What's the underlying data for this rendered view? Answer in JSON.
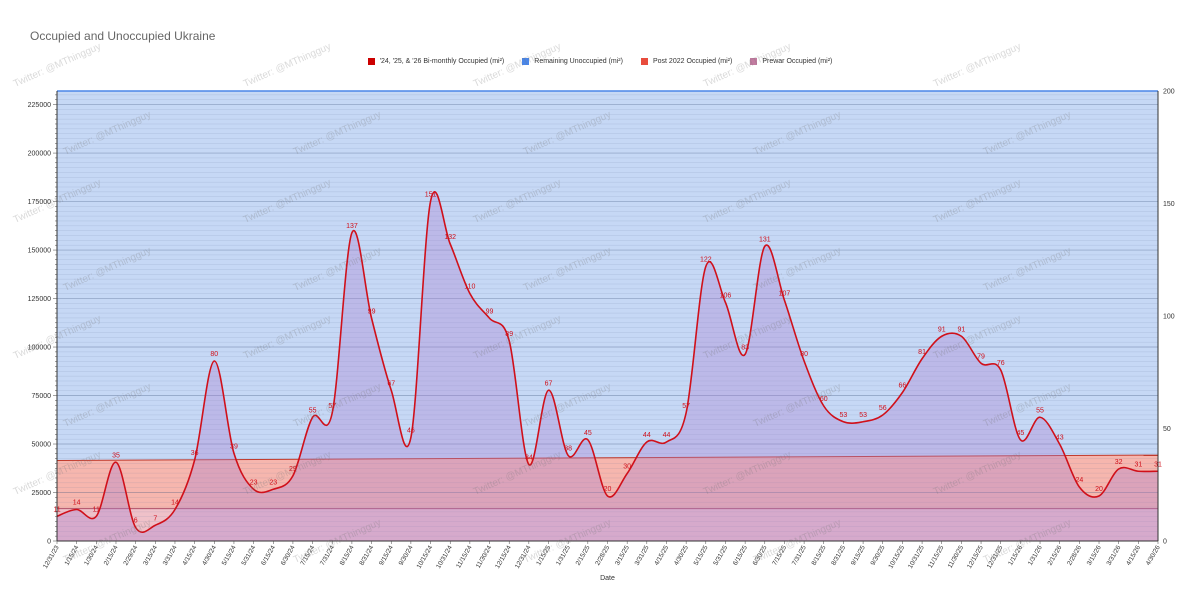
{
  "chart_data": {
    "type": "area",
    "title": "Occupied and Unoccupied Ukraine",
    "xlabel": "Date",
    "ylabel": "",
    "y2label": "",
    "ylim": [
      0,
      232000
    ],
    "y2lim": [
      0,
      200
    ],
    "yticks": [
      0,
      25000,
      50000,
      75000,
      100000,
      125000,
      150000,
      175000,
      200000,
      225000
    ],
    "y2ticks": [
      0,
      50,
      100,
      150,
      200
    ],
    "grid": true,
    "legend_position": "top-center",
    "watermark": "Twitter: @MThingguy",
    "categories": [
      "12/31/23",
      "1/15/24",
      "1/30/24",
      "2/15/24",
      "2/29/24",
      "3/15/24",
      "3/31/24",
      "4/15/24",
      "4/30/24",
      "5/15/24",
      "5/31/24",
      "6/15/24",
      "6/30/24",
      "7/15/24",
      "7/31/24",
      "8/15/24",
      "8/31/24",
      "9/15/24",
      "9/30/24",
      "10/15/24",
      "10/31/24",
      "11/15/24",
      "11/30/24",
      "12/15/24",
      "12/31/24",
      "1/15/25",
      "1/31/25",
      "2/15/25",
      "2/28/25",
      "3/15/25",
      "3/31/25",
      "4/15/25",
      "4/30/25",
      "5/15/25",
      "5/31/25",
      "6/15/25",
      "6/30/25",
      "7/15/25",
      "7/31/25",
      "8/15/25",
      "8/31/25",
      "9/15/25",
      "9/30/25",
      "10/15/25",
      "10/31/25",
      "11/15/25",
      "11/30/25",
      "12/15/25",
      "12/31/25",
      "1/15/26",
      "1/31/26",
      "2/15/26",
      "2/28/26",
      "3/15/26",
      "3/31/26",
      "4/15/26",
      "4/30/26"
    ],
    "series": [
      {
        "name": "'24, '25, & '26 Bi-monthly Occupied (mi²)",
        "axis": "right",
        "color": "#cc0000",
        "values": [
          11,
          14,
          11,
          35,
          6,
          7,
          14,
          36,
          80,
          39,
          23,
          23,
          29,
          55,
          57,
          137,
          99,
          67,
          46,
          151,
          132,
          110,
          99,
          89,
          34,
          67,
          38,
          45,
          20,
          30,
          44,
          44,
          57,
          122,
          106,
          83,
          131,
          107,
          80,
          60,
          53,
          53,
          56,
          66,
          81,
          91,
          91,
          79,
          76,
          45,
          55,
          43,
          24,
          20,
          32,
          31,
          31
        ]
      },
      {
        "name": "Remaining Unoccupied (mi²)",
        "color": "#4a86e8",
        "top": 232000
      },
      {
        "name": "Post 2022 Occupied (mi²)",
        "color": "#e84c3d",
        "values_start": 41500,
        "values_end": 44300
      },
      {
        "name": "Prewar Occupied (mi²)",
        "color": "#c27ba0",
        "value": 16700
      }
    ]
  }
}
